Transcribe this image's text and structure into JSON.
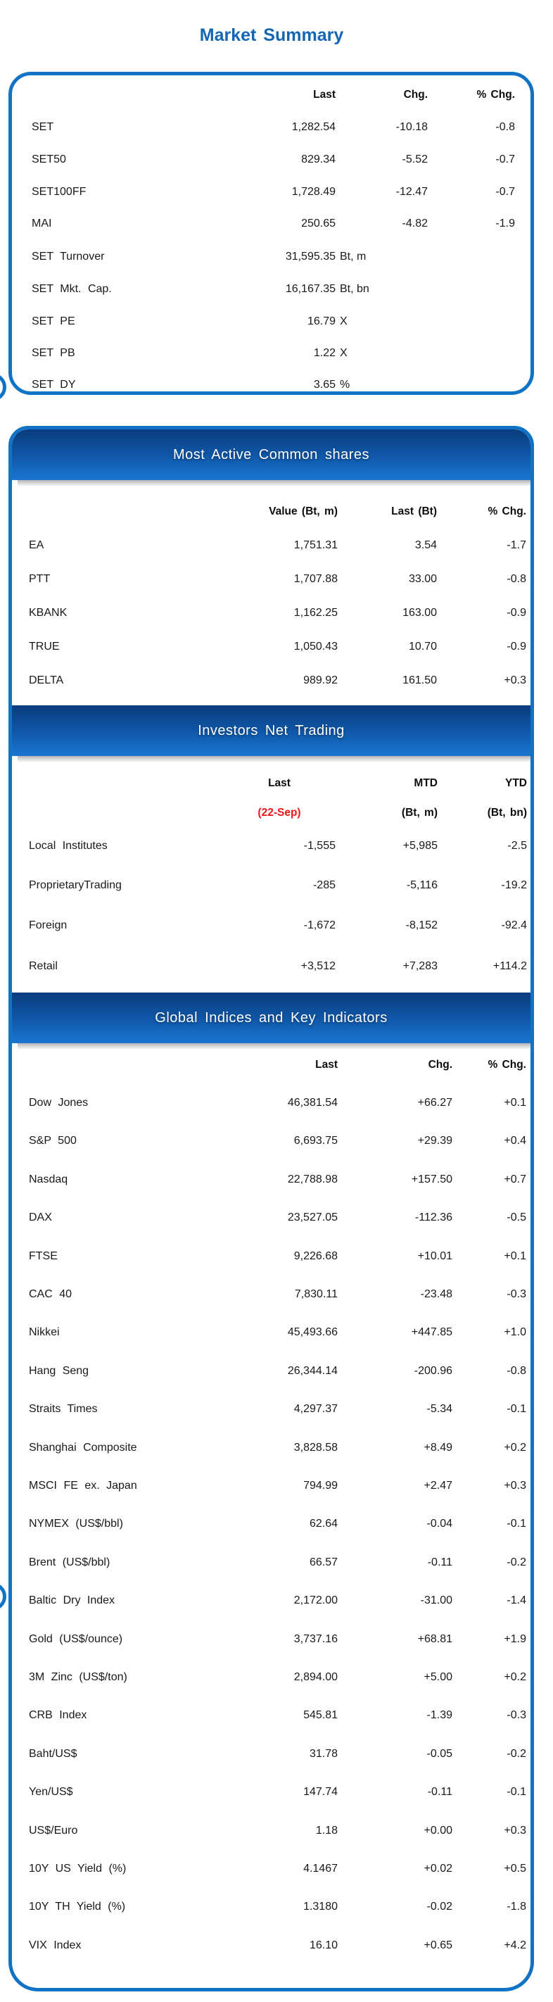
{
  "page_title": "Market Summary",
  "accent_colors": {
    "blue_border": "#1173c5",
    "bar_gradient_top": "#0a3c7d",
    "bar_gradient_bottom": "#1a76d2",
    "title_blue": "#1466b3",
    "date_red": "#f01418"
  },
  "market_summary": {
    "columns": [
      "Last",
      "Chg.",
      "% Chg."
    ],
    "rows": [
      {
        "label": "SET",
        "last": "1,282.54",
        "chg": "-10.18",
        "pct": "-0.8"
      },
      {
        "label": "SET50",
        "last": "829.34",
        "chg": "-5.52",
        "pct": "-0.7"
      },
      {
        "label": "SET100FF",
        "last": "1,728.49",
        "chg": "-12.47",
        "pct": "-0.7"
      },
      {
        "label": "MAI",
        "last": "250.65",
        "chg": "-4.82",
        "pct": "-1.9"
      },
      {
        "label": "SET Turnover",
        "last": "31,595.35",
        "unit": "Bt, m"
      },
      {
        "label": "SET Mkt. Cap.",
        "last": "16,167.35",
        "unit": "Bt, bn"
      },
      {
        "label": "SET PE",
        "last": "16.79",
        "unit": "X"
      },
      {
        "label": "SET PB",
        "last": "1.22",
        "unit": "X"
      },
      {
        "label": "SET DY",
        "last": "3.65",
        "unit": "%"
      }
    ]
  },
  "most_active": {
    "title": "Most Active Common shares",
    "columns": [
      "Value (Bt, m)",
      "Last (Bt)",
      "% Chg."
    ],
    "rows": [
      {
        "label": "EA",
        "value": "1,751.31",
        "last": "3.54",
        "pct": "-1.7"
      },
      {
        "label": "PTT",
        "value": "1,707.88",
        "last": "33.00",
        "pct": "-0.8"
      },
      {
        "label": "KBANK",
        "value": "1,162.25",
        "last": "163.00",
        "pct": "-0.9"
      },
      {
        "label": "TRUE",
        "value": "1,050.43",
        "last": "10.70",
        "pct": "-0.9"
      },
      {
        "label": "DELTA",
        "value": "989.92",
        "last": "161.50",
        "pct": "+0.3"
      }
    ]
  },
  "investors_net_trading": {
    "title": "Investors Net Trading",
    "columns_line1": [
      "Last",
      "MTD",
      "YTD"
    ],
    "columns_line2": [
      "(22-Sep)",
      "(Bt, m)",
      "(Bt, bn)"
    ],
    "rows": [
      {
        "label": "Local Institutes",
        "last": "-1,555",
        "mtd": "+5,985",
        "ytd": "-2.5"
      },
      {
        "label": "ProprietaryTrading",
        "last": "-285",
        "mtd": "-5,116",
        "ytd": "-19.2"
      },
      {
        "label": "Foreign",
        "last": "-1,672",
        "mtd": "-8,152",
        "ytd": "-92.4"
      },
      {
        "label": "Retail",
        "last": "+3,512",
        "mtd": "+7,283",
        "ytd": "+114.2"
      }
    ]
  },
  "global_indices": {
    "title": "Global Indices and Key Indicators",
    "columns": [
      "Last",
      "Chg.",
      "% Chg."
    ],
    "rows": [
      {
        "label": "Dow Jones",
        "last": "46,381.54",
        "chg": "+66.27",
        "pct": "+0.1"
      },
      {
        "label": "S&P 500",
        "last": "6,693.75",
        "chg": "+29.39",
        "pct": "+0.4"
      },
      {
        "label": "Nasdaq",
        "last": "22,788.98",
        "chg": "+157.50",
        "pct": "+0.7"
      },
      {
        "label": "DAX",
        "last": "23,527.05",
        "chg": "-112.36",
        "pct": "-0.5"
      },
      {
        "label": "FTSE",
        "last": "9,226.68",
        "chg": "+10.01",
        "pct": "+0.1"
      },
      {
        "label": "CAC 40",
        "last": "7,830.11",
        "chg": "-23.48",
        "pct": "-0.3"
      },
      {
        "label": "Nikkei",
        "last": "45,493.66",
        "chg": "+447.85",
        "pct": "+1.0"
      },
      {
        "label": "Hang Seng",
        "last": "26,344.14",
        "chg": "-200.96",
        "pct": "-0.8"
      },
      {
        "label": "Straits Times",
        "last": "4,297.37",
        "chg": "-5.34",
        "pct": "-0.1"
      },
      {
        "label": "Shanghai Composite",
        "last": "3,828.58",
        "chg": "+8.49",
        "pct": "+0.2"
      },
      {
        "label": "MSCI FE ex. Japan",
        "last": "794.99",
        "chg": "+2.47",
        "pct": "+0.3"
      },
      {
        "label": "NYMEX (US$/bbl)",
        "last": "62.64",
        "chg": "-0.04",
        "pct": "-0.1"
      },
      {
        "label": "Brent (US$/bbl)",
        "last": "66.57",
        "chg": "-0.11",
        "pct": "-0.2"
      },
      {
        "label": "Baltic Dry Index",
        "last": "2,172.00",
        "chg": "-31.00",
        "pct": "-1.4"
      },
      {
        "label": "Gold (US$/ounce)",
        "last": "3,737.16",
        "chg": "+68.81",
        "pct": "+1.9"
      },
      {
        "label": "3M Zinc (US$/ton)",
        "last": "2,894.00",
        "chg": "+5.00",
        "pct": "+0.2"
      },
      {
        "label": "CRB Index",
        "last": "545.81",
        "chg": "-1.39",
        "pct": "-0.3"
      },
      {
        "label": "Baht/US$",
        "last": "31.78",
        "chg": "-0.05",
        "pct": "-0.2"
      },
      {
        "label": "Yen/US$",
        "last": "147.74",
        "chg": "-0.11",
        "pct": "-0.1"
      },
      {
        "label": "US$/Euro",
        "last": "1.18",
        "chg": "+0.00",
        "pct": "+0.3"
      },
      {
        "label": "10Y US Yield (%)",
        "last": "4.1467",
        "chg": "+0.02",
        "pct": "+0.5"
      },
      {
        "label": "10Y TH Yield (%)",
        "last": "1.3180",
        "chg": "-0.02",
        "pct": "-1.8"
      },
      {
        "label": "VIX Index",
        "last": "16.10",
        "chg": "+0.65",
        "pct": "+4.2"
      }
    ]
  }
}
